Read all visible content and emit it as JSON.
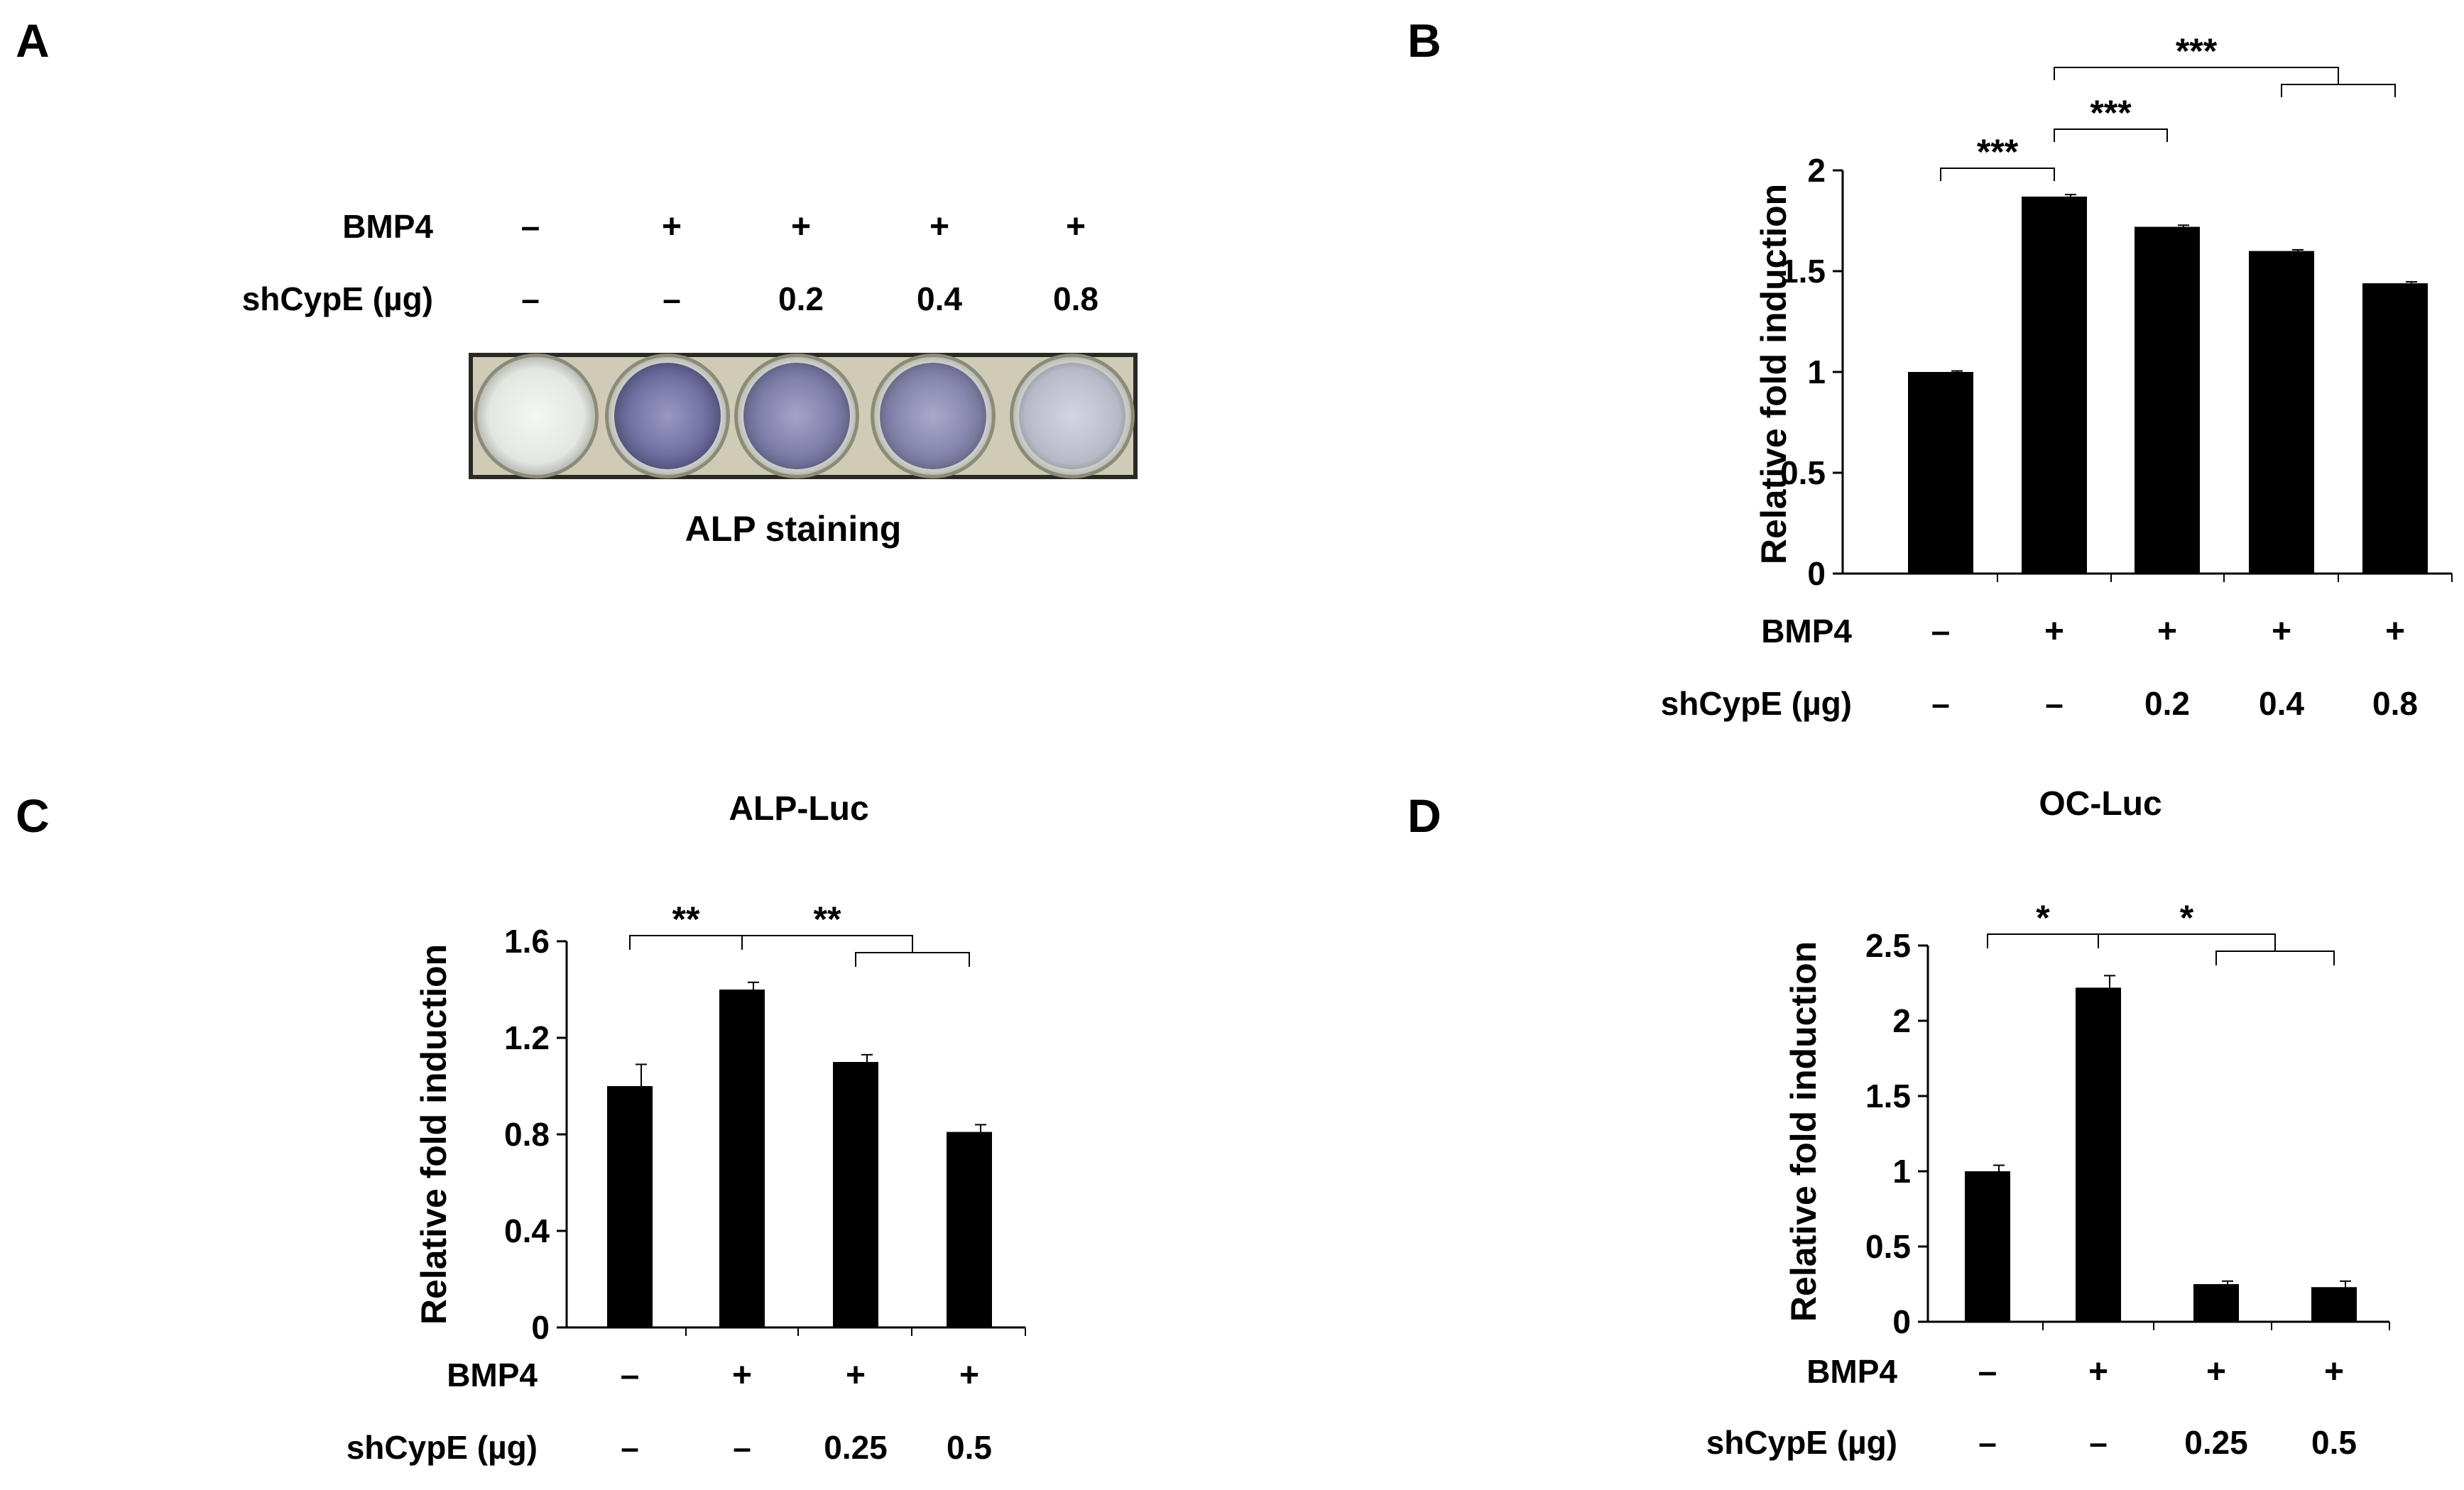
{
  "panels": {
    "A": {
      "letter": "A",
      "row_labels": [
        "BMP4",
        "shCypE (µg)"
      ],
      "conditions": {
        "bmp4": [
          "–",
          "+",
          "+",
          "+",
          "+"
        ],
        "shcype": [
          "–",
          "–",
          "0.2",
          "0.4",
          "0.8"
        ]
      },
      "caption": "ALP staining",
      "well_stain_levels": [
        0.0,
        0.85,
        0.75,
        0.7,
        0.3
      ],
      "colors": {
        "well_stain": "#5a5aa0",
        "well_clear": "#e9ede9",
        "plate_frame": "#c9c5b0"
      }
    },
    "B": {
      "letter": "B"
    },
    "C": {
      "letter": "C"
    },
    "D": {
      "letter": "D"
    }
  },
  "chart_data": [
    {
      "panel": "B",
      "type": "bar",
      "title": "",
      "ylabel": "Relative fold induction",
      "ylim": [
        0,
        2
      ],
      "yticks": [
        "0",
        "0.5",
        "1",
        "1.5",
        "2"
      ],
      "ytick_values": [
        0,
        0.5,
        1,
        1.5,
        2
      ],
      "values": [
        1.0,
        1.87,
        1.72,
        1.6,
        1.44
      ],
      "errors": [
        0.005,
        0.01,
        0.008,
        0.006,
        0.007
      ],
      "row_labels": [
        "BMP4",
        "shCypE (µg)"
      ],
      "bmp4": [
        "–",
        "+",
        "+",
        "+",
        "+"
      ],
      "shcype": [
        "–",
        "–",
        "0.2",
        "0.4",
        "0.8"
      ],
      "significance": [
        {
          "label": "***",
          "type": "pair",
          "from": 0,
          "to": 1,
          "level": 1
        },
        {
          "label": "***",
          "type": "pair",
          "from": 1,
          "to": 2,
          "level": 2
        },
        {
          "label": "***",
          "type": "group",
          "from": 1,
          "group_from": 3,
          "group_to": 4,
          "level": 3
        }
      ],
      "bar_color": "#000000"
    },
    {
      "panel": "C",
      "type": "bar",
      "title": "ALP-Luc",
      "ylabel": "Relative fold induction",
      "ylim": [
        0,
        1.6
      ],
      "yticks": [
        "0",
        "0.4",
        "0.8",
        "1.2",
        "1.6"
      ],
      "ytick_values": [
        0,
        0.4,
        0.8,
        1.2,
        1.6
      ],
      "values": [
        1.0,
        1.4,
        1.1,
        0.81
      ],
      "errors": [
        0.09,
        0.03,
        0.03,
        0.03
      ],
      "row_labels": [
        "BMP4",
        "shCypE (µg)"
      ],
      "bmp4": [
        "–",
        "+",
        "+",
        "+"
      ],
      "shcype": [
        "–",
        "–",
        "0.25",
        "0.5"
      ],
      "significance": [
        {
          "label": "**",
          "type": "pair",
          "from": 0,
          "to": 1,
          "level": 1
        },
        {
          "label": "**",
          "type": "group",
          "from": 1,
          "group_from": 2,
          "group_to": 3,
          "level": 1
        }
      ],
      "bar_color": "#000000"
    },
    {
      "panel": "D",
      "type": "bar",
      "title": "OC-Luc",
      "ylabel": "Relative fold induction",
      "ylim": [
        0,
        2.5
      ],
      "yticks": [
        "0",
        "0.5",
        "1",
        "1.5",
        "2",
        "2.5"
      ],
      "ytick_values": [
        0,
        0.5,
        1,
        1.5,
        2,
        2.5
      ],
      "values": [
        1.0,
        2.22,
        0.25,
        0.23
      ],
      "errors": [
        0.04,
        0.08,
        0.02,
        0.04
      ],
      "row_labels": [
        "BMP4",
        "shCypE (µg)"
      ],
      "bmp4": [
        "–",
        "+",
        "+",
        "+"
      ],
      "shcype": [
        "–",
        "–",
        "0.25",
        "0.5"
      ],
      "significance": [
        {
          "label": "*",
          "type": "pair",
          "from": 0,
          "to": 1,
          "level": 1
        },
        {
          "label": "*",
          "type": "group",
          "from": 1,
          "group_from": 2,
          "group_to": 3,
          "level": 1
        }
      ],
      "bar_color": "#000000"
    }
  ]
}
